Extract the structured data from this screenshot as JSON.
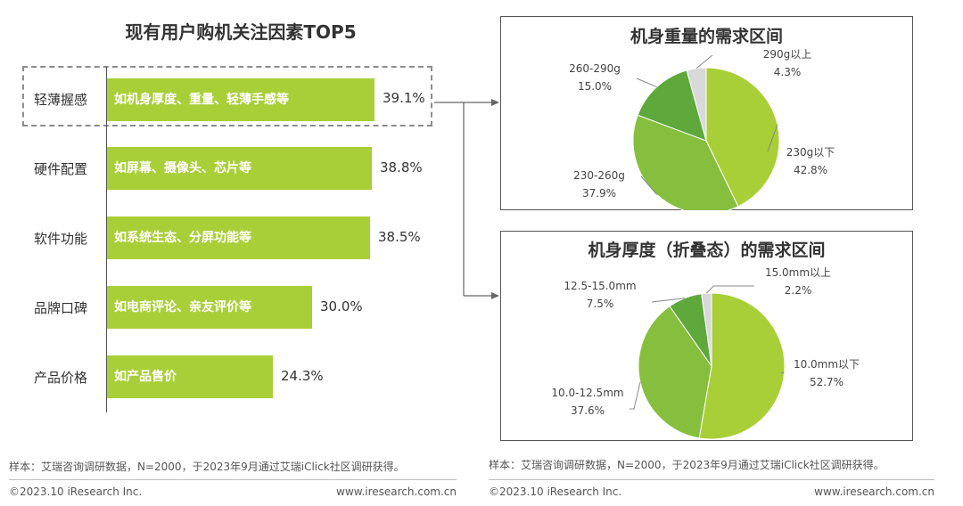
{
  "left_title": "现有用户购机关注因素TOP5",
  "factors": [
    {
      "label": "轻薄握感",
      "desc": "如机身厚度、重量、轻薄手感等",
      "value": "39.1%"
    },
    {
      "label": "硬件配置",
      "desc": "如屏幕、摄像头、芯片等",
      "value": "38.8%"
    },
    {
      "label": "软件功能",
      "desc": "如系统生态、分屏功能等",
      "value": "38.5%"
    },
    {
      "label": "品牌口碑",
      "desc": "如电商评论、亲友评价等",
      "value": "30.0%"
    },
    {
      "label": "产品价格",
      "desc": "如产品售价",
      "value": "24.3%"
    }
  ],
  "weight_panel": {
    "title": "机身重量的需求区间",
    "labels": [
      {
        "name": "290g以上",
        "value": "4.3%"
      },
      {
        "name": "260-290g",
        "value": "15.0%"
      },
      {
        "name": "230g以下",
        "value": "42.8%"
      },
      {
        "name": "230-260g",
        "value": "37.9%"
      }
    ]
  },
  "thickness_panel": {
    "title": "机身厚度（折叠态）的需求区间",
    "labels": [
      {
        "name": "15.0mm以上",
        "value": "2.2%"
      },
      {
        "name": "12.5-15.0mm",
        "value": "7.5%"
      },
      {
        "name": "10.0mm以下",
        "value": "52.7%"
      },
      {
        "name": "10.0-12.5mm",
        "value": "37.6%"
      }
    ]
  },
  "footer": {
    "note_left": "样本：艾瑞咨询调研数据，N=2000，于2023年9月通过艾瑞iClick社区调研获得。",
    "note_right": "样本：艾瑞咨询调研数据，N=2000，于2023年9月通过艾瑞iClick社区调研获得。",
    "copyright_left": "©2023.10 iResearch Inc.",
    "url_left": "www.iresearch.com.cn",
    "copyright_right": "©2023.10 iResearch Inc.",
    "url_right": "www.iresearch.com.cn"
  },
  "colors": {
    "bar": "#a9cf38",
    "pie_main": "#a9cf38",
    "pie_second": "#86bf3e",
    "pie_third": "#5ea83c",
    "pie_small": "#d9d9d9"
  },
  "chart_data": [
    {
      "type": "bar",
      "orientation": "horizontal",
      "title": "现有用户购机关注因素TOP5",
      "categories": [
        "轻薄握感",
        "硬件配置",
        "软件功能",
        "品牌口碑",
        "产品价格"
      ],
      "values": [
        39.1,
        38.8,
        38.5,
        30.0,
        24.3
      ],
      "xlim": [
        0,
        45
      ]
    },
    {
      "type": "pie",
      "title": "机身重量的需求区间",
      "categories": [
        "230g以下",
        "230-260g",
        "260-290g",
        "290g以上"
      ],
      "values": [
        42.8,
        37.9,
        15.0,
        4.3
      ]
    },
    {
      "type": "pie",
      "title": "机身厚度（折叠态）的需求区间",
      "categories": [
        "10.0mm以下",
        "10.0-12.5mm",
        "12.5-15.0mm",
        "15.0mm以上"
      ],
      "values": [
        52.7,
        37.6,
        7.5,
        2.2
      ]
    }
  ]
}
